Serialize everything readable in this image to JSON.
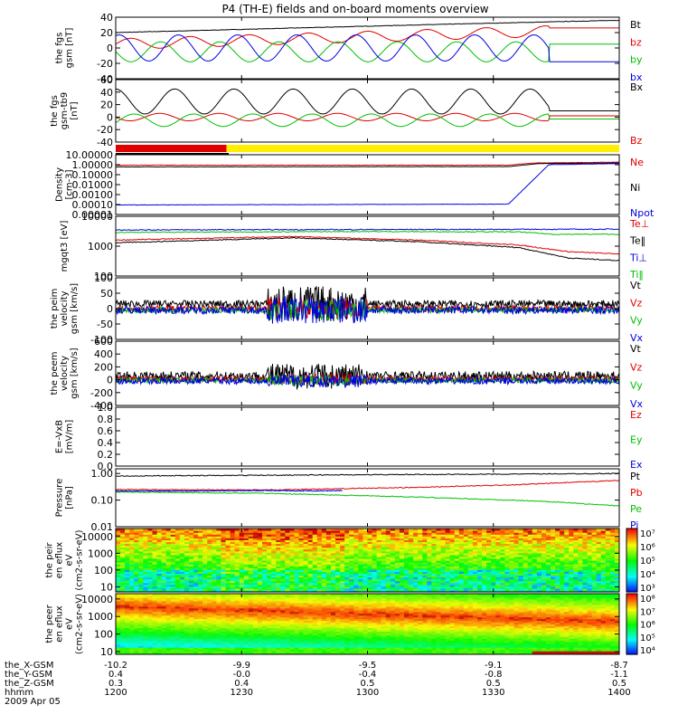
{
  "title": "P4 (TH-E) fields and on-board moments overview",
  "date_label": "2009 Apr 05",
  "colors": {
    "black": "#000000",
    "red": "#e00000",
    "green": "#00c000",
    "blue": "#0000e0",
    "yellow": "#ffee00"
  },
  "ephemeris": {
    "row_labels": [
      "the_X-GSM",
      "the_Y-GSM",
      "the_Z-GSM",
      "hhmm"
    ],
    "columns": [
      {
        "x": "-10.2",
        "y": "0.4",
        "z": "0.3",
        "t": "1200"
      },
      {
        "x": "-9.9",
        "y": "-0.0",
        "z": "0.4",
        "t": "1230"
      },
      {
        "x": "-9.5",
        "y": "-0.4",
        "z": "0.5",
        "t": "1300"
      },
      {
        "x": "-9.1",
        "y": "-0.8",
        "z": "0.5",
        "t": "1330"
      },
      {
        "x": "-8.7",
        "y": "-1.1",
        "z": "0.5",
        "t": "1400"
      }
    ]
  },
  "chart_data": [
    {
      "type": "line",
      "ylabel": "the fgs gsm [nT]",
      "ylim": [
        -40,
        40
      ],
      "yticks": [
        "40",
        "20",
        "0",
        "-20",
        "-40"
      ],
      "legend": [
        "Bt",
        "bz",
        "by",
        "bx"
      ],
      "series": [
        {
          "name": "Bt",
          "color": "black",
          "kind": "trend",
          "values": [
            [
              0,
              20
            ],
            [
              0.3,
              25
            ],
            [
              0.6,
              30
            ],
            [
              1,
              36
            ]
          ]
        },
        {
          "name": "bz",
          "color": "red",
          "kind": "sine",
          "values": {
            "base": 5,
            "amp": 7,
            "cycles": 8.5,
            "end": 0.86,
            "trend_end": 26
          }
        },
        {
          "name": "by",
          "color": "green",
          "kind": "sine",
          "values": {
            "base": -5,
            "amp": 13,
            "cycles": 8.5,
            "phase": 3.1,
            "end": 0.86,
            "after": 5
          }
        },
        {
          "name": "bx",
          "color": "blue",
          "kind": "sine",
          "values": {
            "base": 0,
            "amp": 17,
            "cycles": 8.5,
            "phase": 1.2,
            "end": 0.86,
            "after": -18
          }
        }
      ]
    },
    {
      "type": "line",
      "ylabel": "the fgs gsm-tb9 [nT]",
      "ylim": [
        -40,
        60
      ],
      "yticks": [
        "60",
        "40",
        "20",
        "0",
        "-20",
        "-40"
      ],
      "legend": [
        "Bx",
        "Bz"
      ],
      "series": [
        {
          "name": "Bx",
          "color": "black",
          "kind": "sine",
          "values": {
            "base": 25,
            "amp": 20,
            "cycles": 8.5,
            "phase": 1.6,
            "end": 0.86,
            "after": 10
          }
        },
        {
          "name": "Bz",
          "color": "red",
          "kind": "sine",
          "values": {
            "base": 0,
            "amp": 6,
            "cycles": 8.5,
            "phase": 3.2,
            "end": 0.86,
            "after": 2
          }
        },
        {
          "name": "",
          "color": "green",
          "kind": "sine",
          "values": {
            "base": -5,
            "amp": 10,
            "cycles": 8.5,
            "phase": -0.4,
            "end": 0.86,
            "after": -3
          }
        }
      ]
    },
    {
      "type": "area",
      "ylabel": "",
      "note": "mode bar",
      "segments": [
        {
          "from": 0,
          "to": 0.22,
          "color": "red"
        },
        {
          "from": 0.22,
          "to": 1,
          "color": "yellow"
        }
      ]
    },
    {
      "type": "line",
      "ylabel": "Density [cm-3]",
      "ylim": [
        1e-05,
        10
      ],
      "log": true,
      "yticks": [
        "10.00000",
        "1.00000",
        "0.10000",
        "0.01000",
        "0.00100",
        "0.00010",
        "0.00001"
      ],
      "legend": [
        "Ne",
        "Ni",
        "Npot"
      ],
      "series": [
        {
          "name": "Ne",
          "color": "red",
          "values": [
            [
              0,
              0.9
            ],
            [
              0.78,
              0.9
            ],
            [
              0.83,
              1.5
            ],
            [
              1,
              1.8
            ]
          ]
        },
        {
          "name": "Ni",
          "color": "black",
          "values": [
            [
              0,
              0.6
            ],
            [
              0.78,
              0.65
            ],
            [
              0.84,
              1.3
            ],
            [
              1,
              1.5
            ]
          ]
        },
        {
          "name": "Npot",
          "color": "blue",
          "values": [
            [
              0,
              9e-05
            ],
            [
              0.78,
              0.00011
            ],
            [
              0.86,
              1.0
            ],
            [
              1,
              1.3
            ]
          ]
        }
      ]
    },
    {
      "type": "line",
      "ylabel": "mgqt3 [eV]",
      "ylim": [
        100,
        10000
      ],
      "log": true,
      "yticks": [
        "10000",
        "1000",
        "100"
      ],
      "legend": [
        "Te⊥",
        "Te‖",
        "Ti⊥",
        "Ti‖"
      ],
      "series": [
        {
          "name": "Te⊥",
          "color": "red",
          "values": [
            [
              0,
              1600
            ],
            [
              0.35,
              2100
            ],
            [
              0.6,
              1600
            ],
            [
              0.8,
              1100
            ],
            [
              0.9,
              650
            ],
            [
              1,
              550
            ]
          ]
        },
        {
          "name": "Te‖",
          "color": "black",
          "values": [
            [
              0,
              1300
            ],
            [
              0.35,
              1900
            ],
            [
              0.6,
              1400
            ],
            [
              0.8,
              900
            ],
            [
              0.9,
              400
            ],
            [
              1,
              330
            ]
          ]
        },
        {
          "name": "Ti⊥",
          "color": "blue",
          "values": [
            [
              0,
              3500
            ],
            [
              0.5,
              3600
            ],
            [
              1,
              3700
            ]
          ]
        },
        {
          "name": "Ti‖",
          "color": "green",
          "values": [
            [
              0,
              2900
            ],
            [
              0.5,
              3100
            ],
            [
              0.8,
              3000
            ],
            [
              0.87,
              2500
            ],
            [
              1,
              2500
            ]
          ]
        }
      ]
    },
    {
      "type": "line",
      "ylabel": "the peim velocity gsm [km/s]",
      "ylim": [
        -100,
        100
      ],
      "yticks": [
        "100",
        "50",
        "0",
        "-50",
        "-100"
      ],
      "legend": [
        "Vt",
        "Vz",
        "Vy",
        "Vx"
      ],
      "series": [
        {
          "name": "Vt",
          "color": "black",
          "kind": "noise",
          "values": {
            "base": 15,
            "amp": 12,
            "burst": [
              0.3,
              0.5,
              60
            ]
          }
        },
        {
          "name": "Vz",
          "color": "red",
          "kind": "noise",
          "values": {
            "base": 0,
            "amp": 10,
            "burst": [
              0.3,
              0.5,
              35
            ]
          }
        },
        {
          "name": "Vy",
          "color": "green",
          "kind": "noise",
          "values": {
            "base": -5,
            "amp": 10,
            "burst": [
              0.3,
              0.5,
              35
            ]
          }
        },
        {
          "name": "Vx",
          "color": "blue",
          "kind": "noise",
          "values": {
            "base": -5,
            "amp": 12,
            "burst": [
              0.3,
              0.5,
              45
            ]
          }
        }
      ]
    },
    {
      "type": "line",
      "ylabel": "the peem velocity gsm [km/s]",
      "ylim": [
        -400,
        600
      ],
      "yticks": [
        "600",
        "400",
        "200",
        "0",
        "-200",
        "-400"
      ],
      "legend": [
        "Vt",
        "Vz",
        "Vy",
        "Vx"
      ],
      "series": [
        {
          "name": "Vt",
          "color": "black",
          "kind": "noise",
          "values": {
            "base": 60,
            "amp": 70,
            "burst": [
              0.3,
              0.5,
              200
            ]
          }
        },
        {
          "name": "Vz",
          "color": "red",
          "kind": "noise",
          "values": {
            "base": 10,
            "amp": 40,
            "burst": [
              0.3,
              0.5,
              80
            ]
          }
        },
        {
          "name": "Vy",
          "color": "green",
          "kind": "noise",
          "values": {
            "base": -10,
            "amp": 40,
            "burst": [
              0.3,
              0.5,
              80
            ]
          }
        },
        {
          "name": "Vx",
          "color": "blue",
          "kind": "noise",
          "values": {
            "base": -20,
            "amp": 50,
            "burst": [
              0.3,
              0.5,
              100
            ]
          }
        }
      ]
    },
    {
      "type": "line",
      "ylabel": "E=-VxB [mV/m]",
      "ylim": [
        0,
        1
      ],
      "yticks": [
        "1.0",
        "0.8",
        "0.6",
        "0.4",
        "0.2",
        "0.0"
      ],
      "legend": [
        "Ez",
        "Ey",
        "Ex"
      ],
      "series": []
    },
    {
      "type": "line",
      "ylabel": "Pressure [nPa]",
      "ylim": [
        0.01,
        1.5
      ],
      "log": true,
      "yticks": [
        "1.00",
        "0.10",
        "0.01"
      ],
      "legend": [
        "Pt",
        "Pb",
        "Pe",
        "Pi"
      ],
      "series": [
        {
          "name": "Pt",
          "color": "black",
          "values": [
            [
              0,
              0.8
            ],
            [
              0.4,
              0.88
            ],
            [
              0.8,
              0.95
            ],
            [
              1,
              1.0
            ]
          ]
        },
        {
          "name": "Pb",
          "color": "red",
          "values": [
            [
              0,
              0.25
            ],
            [
              0.3,
              0.24
            ],
            [
              0.6,
              0.3
            ],
            [
              0.8,
              0.38
            ],
            [
              1,
              0.55
            ]
          ]
        },
        {
          "name": "Pe",
          "color": "green",
          "values": [
            [
              0,
              0.2
            ],
            [
              0.3,
              0.18
            ],
            [
              0.6,
              0.13
            ],
            [
              0.85,
              0.09
            ],
            [
              1,
              0.06
            ]
          ]
        },
        {
          "name": "Pi",
          "color": "blue",
          "values": [
            [
              0,
              0.22
            ],
            [
              0.15,
              0.22
            ],
            [
              0.3,
              0.23
            ],
            [
              0.4,
              0.22
            ],
            [
              0.45,
              0.23
            ]
          ]
        }
      ]
    },
    {
      "type": "heatmap",
      "ylabel": "the peir en eflux eV (cm2-s-sr-eV)",
      "ylim": [
        5,
        30000
      ],
      "log": true,
      "yticks": [
        "10000",
        "1000",
        "100",
        "10"
      ],
      "colorbar": {
        "labels": [
          "10⁷",
          "10⁶",
          "10⁵",
          "10⁴",
          "10³"
        ],
        "min_exp": 2.7,
        "max_exp": 7
      }
    },
    {
      "type": "heatmap",
      "ylabel": "the peer en eflux eV (cm2-s-sr-eV)",
      "ylim": [
        7,
        20000
      ],
      "log": true,
      "yticks": [
        "10000",
        "1000",
        "100",
        "10"
      ],
      "colorbar": {
        "labels": [
          "10⁸",
          "10⁷",
          "10⁶",
          "10⁵",
          "10⁴"
        ],
        "min_exp": 3.7,
        "max_exp": 8
      }
    }
  ]
}
